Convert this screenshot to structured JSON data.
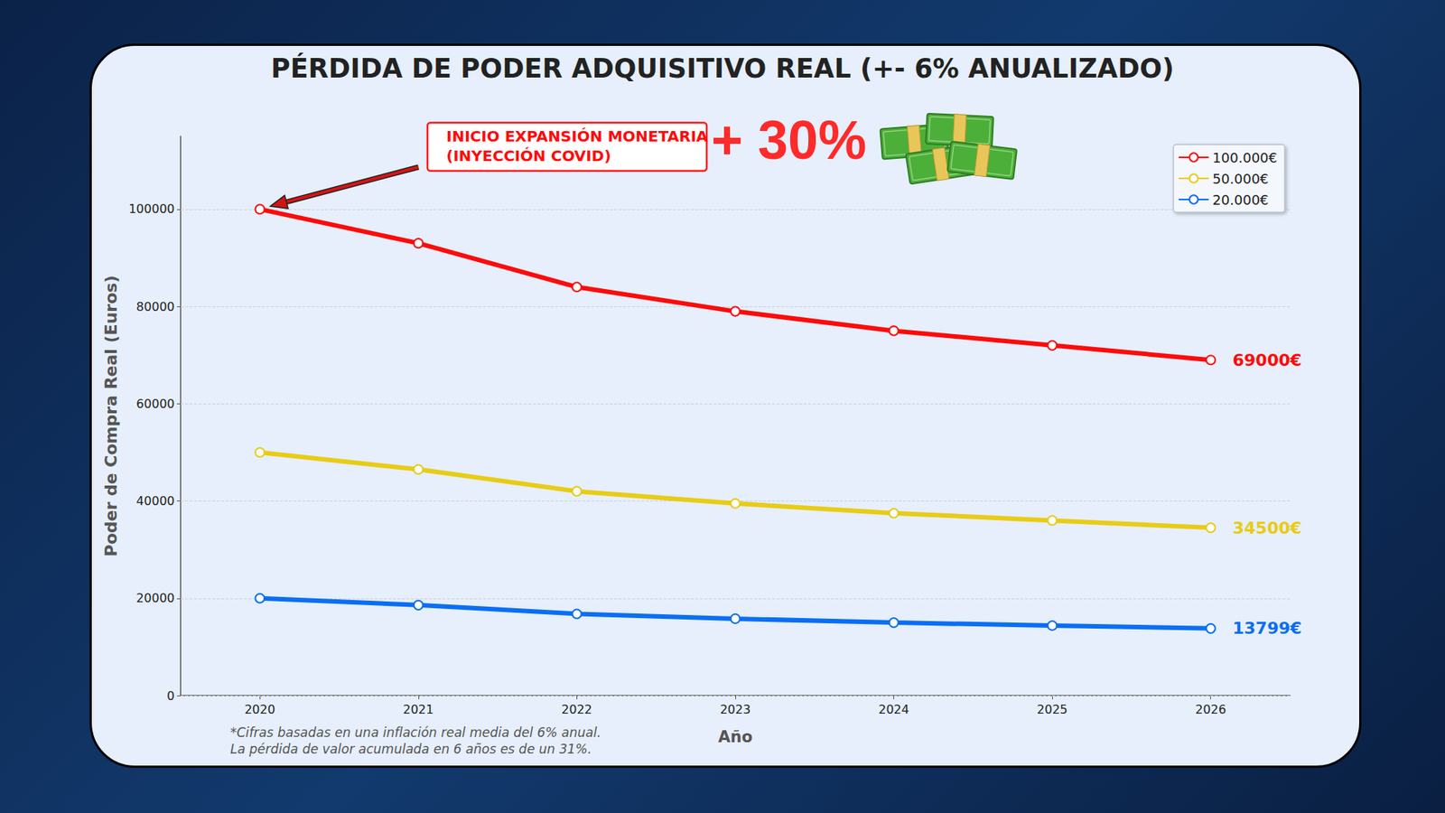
{
  "chart_data": {
    "type": "line",
    "title": "PÉRDIDA DE PODER ADQUISITIVO REAL (+- 6% ANUALIZADO)",
    "xlabel": "Año",
    "ylabel": "Poder de Compra Real (Euros)",
    "annotations": [
      "INICIO EXPANSIÓN MONETARIA\n(INYECCIÓN COVID)",
      "+ 30%"
    ],
    "footnote": "*Cifras basadas en una inflación real media del 6% anual.\nLa pérdida de valor acumulada en 6 años es de un 31%.",
    "categories": [
      "2020",
      "2021",
      "2022",
      "2023",
      "2024",
      "2025",
      "2026"
    ],
    "series": [
      {
        "name": "100.000€",
        "color": "#ff0a0a",
        "values": [
          100000,
          93000,
          84000,
          79000,
          75000,
          72000,
          69000
        ],
        "value_labels": [
          null,
          null,
          null,
          null,
          null,
          null,
          "69000€"
        ]
      },
      {
        "name": "50.000€",
        "color": "#e8cc14",
        "values": [
          50000,
          46500,
          42000,
          39500,
          37500,
          36000,
          34500
        ],
        "value_labels": [
          null,
          null,
          null,
          null,
          null,
          null,
          "34500€"
        ]
      },
      {
        "name": "20.000€",
        "color": "#0a6ef5",
        "values": [
          20000,
          18600,
          16800,
          15800,
          15000,
          14400,
          13799
        ],
        "value_labels": [
          null,
          null,
          null,
          null,
          null,
          null,
          "13799€"
        ]
      }
    ],
    "ylim": [
      0,
      115000
    ],
    "yticks": [
      0,
      20000,
      40000,
      60000,
      80000,
      100000
    ],
    "grid": true,
    "legend": "upper right",
    "marker": "circle"
  }
}
